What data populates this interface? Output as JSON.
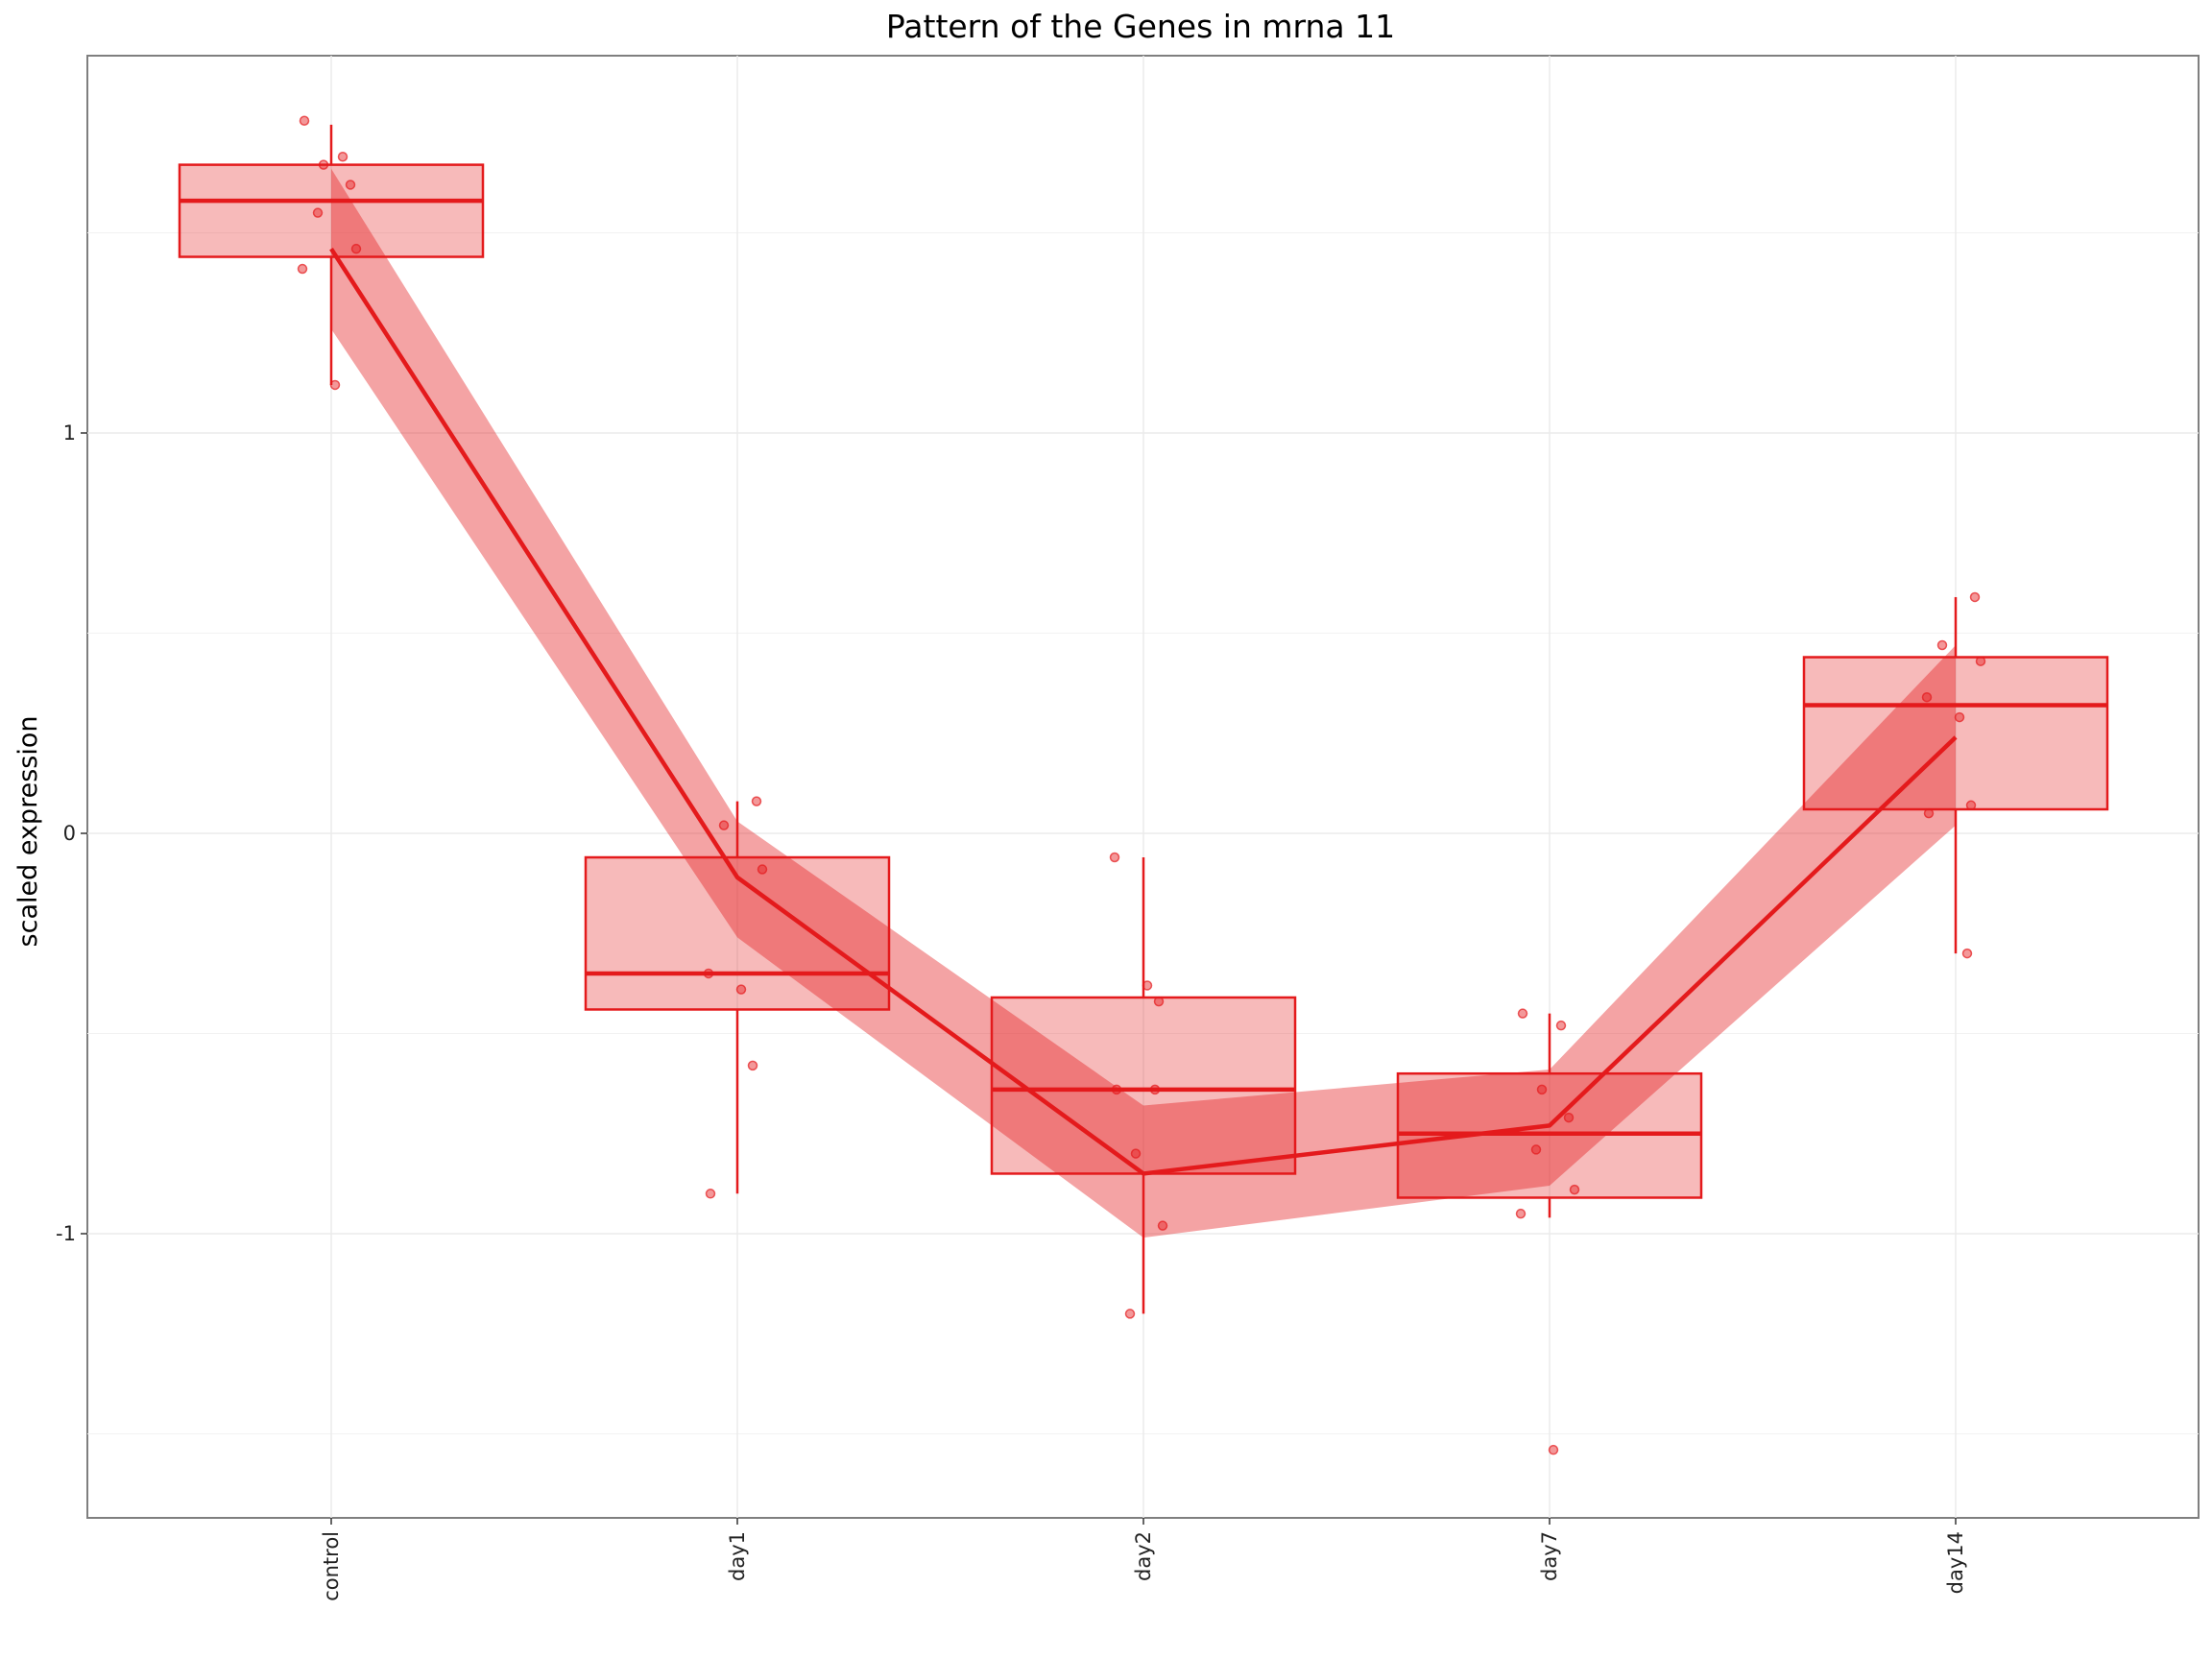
{
  "chart_data": {
    "type": "boxplot",
    "title": "Pattern of the Genes in mrna 11",
    "xlabel": "",
    "ylabel": "scaled expression",
    "categories": [
      "control",
      "day1",
      "day2",
      "day7",
      "day14"
    ],
    "y_ticks": [
      -1,
      0,
      1
    ],
    "y_tick_labels": [
      "-1",
      "0",
      "1"
    ],
    "ylim": [
      -1.7,
      1.95
    ],
    "grid": true,
    "color": "#e41a1c",
    "boxes": [
      {
        "category": "control",
        "whisker_low": 1.12,
        "q1": 1.44,
        "median": 1.58,
        "q3": 1.67,
        "whisker_high": 1.77
      },
      {
        "category": "day1",
        "whisker_low": -0.9,
        "q1": -0.44,
        "median": -0.35,
        "q3": -0.06,
        "whisker_high": 0.08
      },
      {
        "category": "day2",
        "whisker_low": -1.2,
        "q1": -0.85,
        "median": -0.64,
        "q3": -0.41,
        "whisker_high": -0.06
      },
      {
        "category": "day7",
        "whisker_low": -0.96,
        "q1": -0.91,
        "median": -0.75,
        "q3": -0.6,
        "whisker_high": -0.45
      },
      {
        "category": "day14",
        "whisker_low": -0.3,
        "q1": 0.06,
        "median": 0.32,
        "q3": 0.44,
        "whisker_high": 0.59
      }
    ],
    "trend_line": {
      "mean": [
        1.46,
        -0.11,
        -0.85,
        -0.73,
        0.24
      ],
      "lower": [
        1.26,
        -0.26,
        -1.01,
        -0.88,
        0.02
      ],
      "upper": [
        1.66,
        0.03,
        -0.68,
        -0.59,
        0.47
      ]
    },
    "points": [
      {
        "category": "control",
        "values": [
          1.78,
          1.69,
          1.67,
          1.62,
          1.55,
          1.46,
          1.41,
          1.12
        ]
      },
      {
        "category": "day1",
        "values": [
          0.08,
          0.02,
          -0.09,
          -0.35,
          -0.39,
          -0.58,
          -0.9
        ]
      },
      {
        "category": "day2",
        "values": [
          -0.06,
          -0.38,
          -0.42,
          -0.64,
          -0.64,
          -0.8,
          -0.98,
          -1.2
        ]
      },
      {
        "category": "day7",
        "values": [
          -0.45,
          -0.48,
          -0.64,
          -0.71,
          -0.79,
          -0.89,
          -0.95,
          -1.54
        ]
      },
      {
        "category": "day14",
        "values": [
          0.59,
          0.47,
          0.43,
          0.34,
          0.29,
          0.07,
          0.05,
          -0.3
        ]
      }
    ]
  }
}
